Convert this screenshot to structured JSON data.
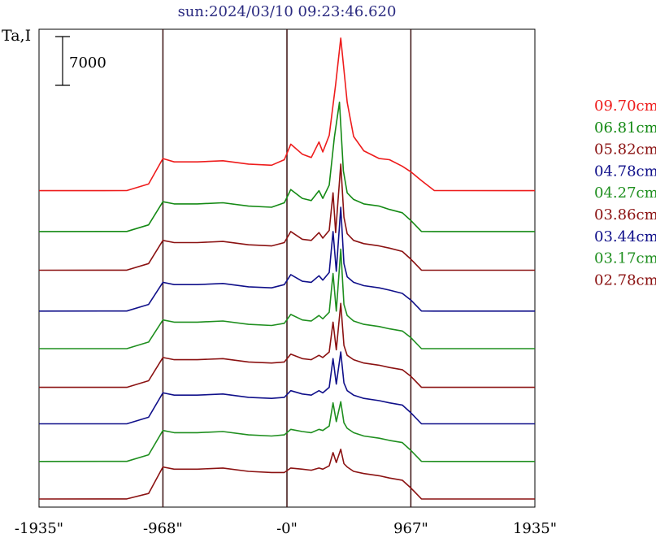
{
  "chart_data": {
    "type": "line",
    "title": "sun:2024/03/10 09:23:46.620",
    "ylabel": "Ta,I",
    "xlim": [
      -1935,
      1935
    ],
    "ylim": [
      0,
      39000
    ],
    "scale_bar": {
      "value": 7000,
      "label": "7000"
    },
    "x_ticks": [
      {
        "value": -1935,
        "label": "-1935\""
      },
      {
        "value": -968,
        "label": "-968\""
      },
      {
        "value": 0,
        "label": "-0\""
      },
      {
        "value": 967,
        "label": "967\""
      },
      {
        "value": 1935,
        "label": "1935\""
      }
    ],
    "vlines": [
      -968,
      0,
      967
    ],
    "series": [
      {
        "name": "09.70cm",
        "color": "#ee1c1c",
        "baseline": 24000,
        "x": [
          -1935,
          -1250,
          -1080,
          -968,
          -880,
          -700,
          -500,
          -300,
          -120,
          -20,
          30,
          120,
          190,
          250,
          280,
          330,
          380,
          420,
          470,
          520,
          600,
          720,
          800,
          900,
          967,
          1050,
          1150,
          1935
        ],
        "y": [
          0,
          5,
          600,
          2900,
          2600,
          2600,
          2700,
          2400,
          2300,
          2800,
          4200,
          3300,
          3000,
          4400,
          3500,
          5000,
          9600,
          13800,
          8000,
          4900,
          3600,
          2900,
          2800,
          2200,
          1700,
          900,
          5,
          0
        ]
      },
      {
        "name": "06.81cm",
        "color": "#158a15",
        "baseline": 20300,
        "x": [
          -1935,
          -1250,
          -1080,
          -968,
          -880,
          -700,
          -500,
          -300,
          -120,
          -20,
          30,
          120,
          190,
          250,
          280,
          330,
          370,
          410,
          440,
          470,
          520,
          600,
          720,
          800,
          900,
          967,
          1050,
          1150,
          1935
        ],
        "y": [
          0,
          5,
          600,
          2700,
          2500,
          2500,
          2600,
          2300,
          2200,
          2600,
          3800,
          3000,
          2800,
          3700,
          3000,
          4200,
          8500,
          11700,
          5500,
          3500,
          2900,
          2500,
          2300,
          2000,
          1700,
          1000,
          5,
          0,
          0
        ]
      },
      {
        "name": "05.82cm",
        "color": "#8b1212",
        "baseline": 16800,
        "x": [
          -1935,
          -1250,
          -1080,
          -968,
          -880,
          -700,
          -500,
          -300,
          -120,
          -20,
          30,
          120,
          190,
          250,
          280,
          330,
          360,
          380,
          420,
          445,
          470,
          520,
          600,
          720,
          800,
          900,
          967,
          1050,
          1150,
          1935
        ],
        "y": [
          0,
          5,
          600,
          2700,
          2500,
          2500,
          2600,
          2300,
          2200,
          2500,
          3500,
          2800,
          2700,
          3400,
          2900,
          3600,
          7000,
          3400,
          9600,
          4800,
          3300,
          2700,
          2400,
          2200,
          2000,
          1700,
          1000,
          5,
          0,
          0
        ]
      },
      {
        "name": "04.78cm",
        "color": "#10108a",
        "baseline": 13100,
        "x": [
          -1935,
          -1250,
          -1080,
          -968,
          -880,
          -700,
          -500,
          -300,
          -120,
          -20,
          30,
          120,
          190,
          250,
          280,
          330,
          360,
          385,
          420,
          445,
          470,
          520,
          600,
          720,
          800,
          900,
          967,
          1050,
          1150,
          1935
        ],
        "y": [
          0,
          5,
          600,
          2600,
          2400,
          2400,
          2500,
          2200,
          2100,
          2400,
          3300,
          2700,
          2600,
          3200,
          2800,
          3500,
          7200,
          3600,
          9400,
          4300,
          3100,
          2600,
          2300,
          2100,
          1900,
          1600,
          1000,
          5,
          0,
          0
        ]
      },
      {
        "name": "04.27cm",
        "color": "#1f8f1f",
        "baseline": 9700,
        "x": [
          -1935,
          -1250,
          -1080,
          -968,
          -880,
          -700,
          -500,
          -300,
          -120,
          -20,
          30,
          120,
          190,
          250,
          280,
          330,
          360,
          385,
          420,
          445,
          470,
          520,
          600,
          720,
          800,
          900,
          967,
          1050,
          1150,
          1935
        ],
        "y": [
          0,
          5,
          600,
          2600,
          2400,
          2400,
          2500,
          2200,
          2100,
          2300,
          3100,
          2600,
          2500,
          3000,
          2700,
          3300,
          6800,
          3400,
          9000,
          4000,
          3000,
          2500,
          2200,
          2000,
          1800,
          1600,
          1000,
          5,
          0,
          0
        ]
      },
      {
        "name": "03.86cm",
        "color": "#8b1212",
        "baseline": 6200,
        "x": [
          -1935,
          -1250,
          -1080,
          -968,
          -880,
          -700,
          -500,
          -300,
          -120,
          -20,
          30,
          120,
          190,
          250,
          280,
          330,
          360,
          385,
          420,
          445,
          470,
          520,
          600,
          720,
          800,
          900,
          967,
          1050,
          1150,
          1935
        ],
        "y": [
          0,
          5,
          600,
          2700,
          2500,
          2500,
          2600,
          2300,
          2200,
          2300,
          3000,
          2600,
          2500,
          2900,
          2700,
          3200,
          5900,
          3400,
          7600,
          3800,
          2900,
          2500,
          2200,
          2000,
          1800,
          1600,
          1000,
          5,
          0,
          0
        ]
      },
      {
        "name": "03.44cm",
        "color": "#10108a",
        "baseline": 2900,
        "x": [
          -1935,
          -1250,
          -1080,
          -968,
          -880,
          -700,
          -500,
          -300,
          -120,
          -20,
          30,
          120,
          190,
          250,
          280,
          330,
          360,
          385,
          420,
          445,
          470,
          520,
          600,
          720,
          800,
          900,
          967,
          1050,
          1150,
          1935
        ],
        "y": [
          0,
          5,
          600,
          2800,
          2600,
          2600,
          2700,
          2400,
          2300,
          2400,
          3000,
          2700,
          2600,
          3000,
          2800,
          3300,
          5900,
          3600,
          6500,
          3700,
          3000,
          2600,
          2300,
          2100,
          1900,
          1700,
          1000,
          5,
          0,
          0
        ]
      },
      {
        "name": "03.17cm",
        "color": "#1f8f1f",
        "baseline": -500,
        "x": [
          -1935,
          -1250,
          -1080,
          -968,
          -880,
          -700,
          -500,
          -300,
          -120,
          -20,
          30,
          120,
          190,
          250,
          280,
          330,
          360,
          385,
          420,
          445,
          470,
          520,
          600,
          720,
          800,
          900,
          967,
          1050,
          1150,
          1935
        ],
        "y": [
          0,
          5,
          600,
          2800,
          2600,
          2600,
          2700,
          2400,
          2300,
          2400,
          2900,
          2700,
          2600,
          2900,
          2800,
          3200,
          5300,
          3600,
          5400,
          3500,
          3000,
          2600,
          2300,
          2100,
          1900,
          1700,
          1000,
          5,
          0,
          0
        ]
      },
      {
        "name": "02.78cm",
        "color": "#8b1212",
        "baseline": -3900,
        "x": [
          -1935,
          -1250,
          -1080,
          -968,
          -880,
          -700,
          -500,
          -300,
          -120,
          -20,
          30,
          120,
          190,
          250,
          280,
          330,
          360,
          385,
          420,
          445,
          470,
          520,
          600,
          720,
          800,
          900,
          967,
          1050,
          1150,
          1935
        ],
        "y": [
          0,
          5,
          500,
          2900,
          2700,
          2700,
          2800,
          2500,
          2400,
          2400,
          2800,
          2700,
          2600,
          2800,
          2700,
          3000,
          4200,
          3300,
          4500,
          3200,
          2900,
          2500,
          2300,
          2100,
          1900,
          1700,
          1000,
          5,
          0,
          0
        ]
      }
    ]
  }
}
